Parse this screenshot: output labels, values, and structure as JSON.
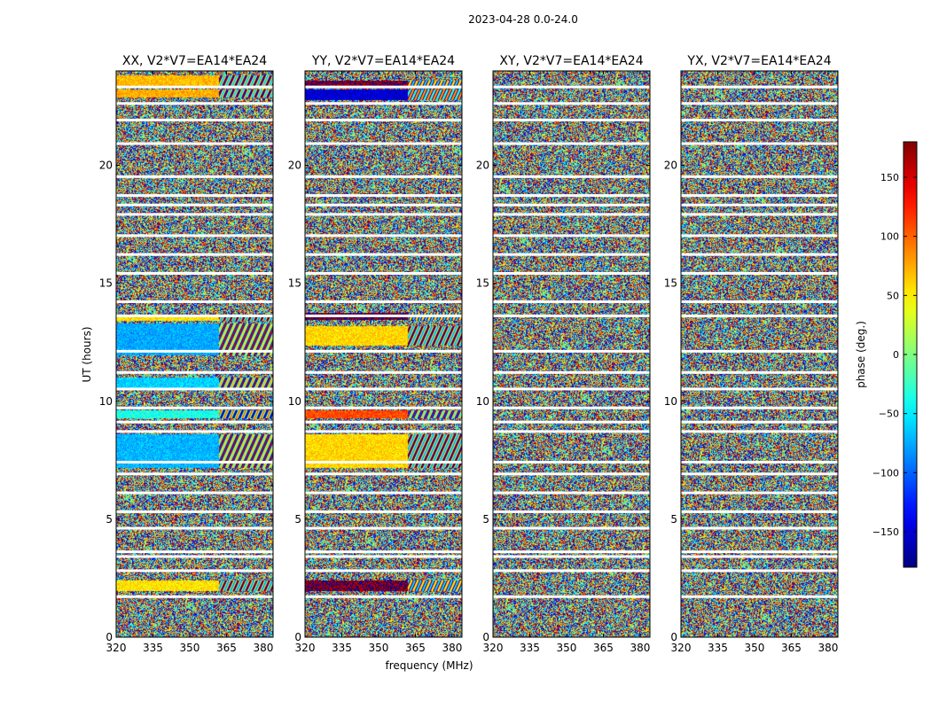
{
  "chart_data": {
    "type": "heatmap",
    "title": "2023-04-28 0.0-24.0",
    "xlabel": "frequency (MHz)",
    "ylabel": "UT (hours)",
    "xlim": [
      320,
      384
    ],
    "ylim": [
      0,
      24
    ],
    "xticks": [
      "320",
      "335",
      "350",
      "365",
      "380"
    ],
    "xtick_values": [
      320,
      335,
      350,
      365,
      380
    ],
    "yticks": [
      "0",
      "5",
      "10",
      "15",
      "20"
    ],
    "ytick_values": [
      0,
      5,
      10,
      15,
      20
    ],
    "panels": [
      {
        "id": "xx",
        "title": "XX, V2*V7=EA14*EA24",
        "bands": [
          {
            "t0": 2.0,
            "t1": 2.4,
            "phase": 55
          },
          {
            "t0": 7.2,
            "t1": 8.6,
            "phase": -70
          },
          {
            "t0": 9.3,
            "t1": 9.6,
            "phase": -35
          },
          {
            "t0": 10.6,
            "t1": 11.0,
            "phase": -60
          },
          {
            "t0": 12.0,
            "t1": 13.3,
            "phase": -75
          },
          {
            "t0": 13.45,
            "t1": 13.6,
            "phase": 55
          },
          {
            "t0": 22.9,
            "t1": 23.2,
            "phase": 75
          },
          {
            "t0": 23.4,
            "t1": 23.8,
            "phase": 70
          }
        ]
      },
      {
        "id": "yy",
        "title": "YY, V2*V7=EA14*EA24",
        "bands": [
          {
            "t0": 2.0,
            "t1": 2.4,
            "phase": 175
          },
          {
            "t0": 9.3,
            "t1": 9.6,
            "phase": 110
          },
          {
            "t0": 7.2,
            "t1": 8.6,
            "phase": 60
          },
          {
            "t0": 12.4,
            "t1": 13.2,
            "phase": 60
          },
          {
            "t0": 13.5,
            "t1": 13.75,
            "phase": 178
          },
          {
            "t0": 22.8,
            "t1": 23.2,
            "phase": -150
          },
          {
            "t0": 23.3,
            "t1": 23.6,
            "phase": 175
          }
        ]
      },
      {
        "id": "xy",
        "title": "XY, V2*V7=EA14*EA24",
        "bands": []
      },
      {
        "id": "yx",
        "title": "YX, V2*V7=EA14*EA24",
        "bands": []
      }
    ],
    "flagged_gaps_ut": [
      1.7,
      2.8,
      3.4,
      3.6,
      4.6,
      5.3,
      6.1,
      6.9,
      7.4,
      8.7,
      9.1,
      9.7,
      10.5,
      11.2,
      12.1,
      13.6,
      14.2,
      15.4,
      16.2,
      17.0,
      17.9,
      18.3,
      18.7,
      19.5,
      20.9,
      21.9,
      22.6,
      23.3
    ],
    "colorbar": {
      "label": "phase (deg.)",
      "range": [
        -180,
        180
      ],
      "ticks": [
        "−150",
        "−100",
        "−50",
        "0",
        "50",
        "100",
        "150"
      ],
      "tick_values": [
        -150,
        -100,
        -50,
        0,
        50,
        100,
        150
      ],
      "colormap": "jet"
    }
  }
}
